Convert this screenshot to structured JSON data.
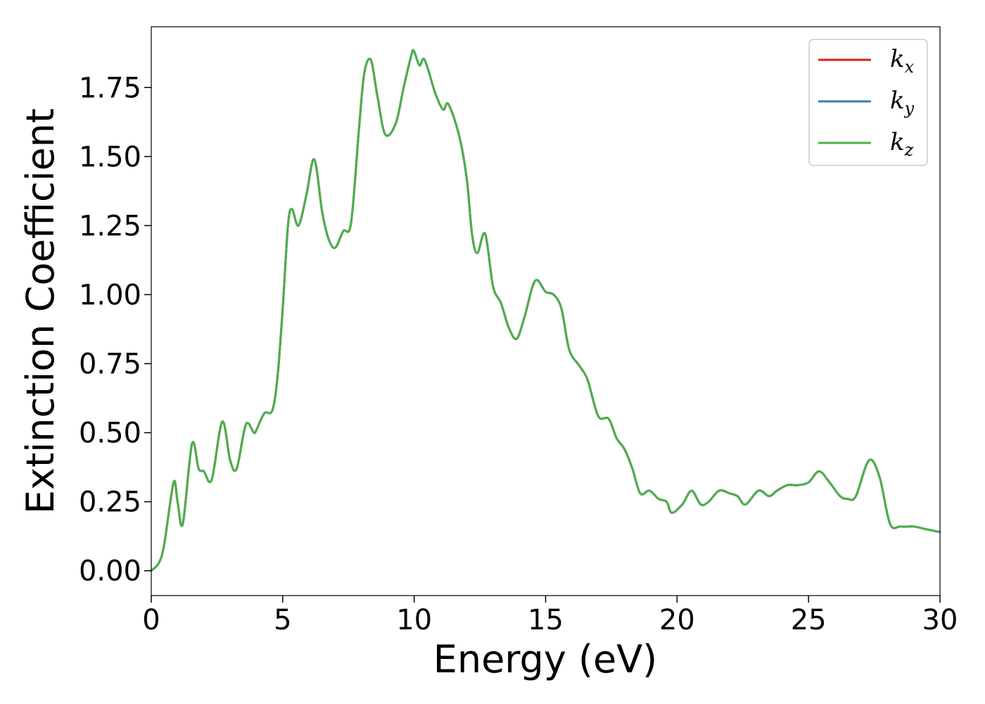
{
  "chart_data": {
    "type": "line",
    "title": "",
    "xlabel": "Energy (eV)",
    "ylabel": "Extinction Coefficient",
    "xlim": [
      0,
      30
    ],
    "ylim": [
      -0.09,
      1.97
    ],
    "xticks": [
      0,
      5,
      10,
      15,
      20,
      25,
      30
    ],
    "xtick_labels": [
      "0",
      "5",
      "10",
      "15",
      "20",
      "25",
      "30"
    ],
    "yticks": [
      0.0,
      0.25,
      0.5,
      0.75,
      1.0,
      1.25,
      1.5,
      1.75
    ],
    "ytick_labels": [
      "0.00",
      "0.25",
      "0.50",
      "0.75",
      "1.00",
      "1.25",
      "1.50",
      "1.75"
    ],
    "grid": false,
    "legend_position": "top-right",
    "x": [
      0.0,
      0.3,
      0.5,
      0.85,
      1.0,
      1.2,
      1.55,
      1.8,
      2.0,
      2.3,
      2.7,
      3.0,
      3.25,
      3.6,
      3.9,
      4.0,
      4.3,
      4.6,
      4.8,
      5.0,
      5.2,
      5.35,
      5.6,
      5.9,
      6.2,
      6.5,
      6.75,
      7.0,
      7.3,
      7.6,
      7.9,
      8.1,
      8.35,
      8.6,
      8.9,
      9.3,
      9.6,
      9.9,
      10.0,
      10.2,
      10.4,
      10.8,
      11.1,
      11.3,
      11.7,
      12.0,
      12.2,
      12.4,
      12.7,
      13.0,
      13.3,
      13.6,
      13.9,
      14.2,
      14.6,
      15.0,
      15.3,
      15.6,
      15.9,
      16.3,
      16.6,
      17.0,
      17.4,
      17.7,
      18.0,
      18.3,
      18.6,
      18.95,
      19.3,
      19.6,
      19.8,
      20.2,
      20.55,
      20.9,
      21.2,
      21.6,
      22.0,
      22.3,
      22.6,
      23.1,
      23.5,
      23.8,
      24.2,
      24.6,
      25.0,
      25.4,
      25.8,
      26.2,
      26.5,
      26.8,
      27.3,
      27.7,
      28.1,
      28.5,
      29.0,
      29.5,
      30.0
    ],
    "series": [
      {
        "name": "k_x",
        "color": "#e41a1c",
        "values": [
          0.0,
          0.03,
          0.1,
          0.32,
          0.25,
          0.17,
          0.46,
          0.37,
          0.36,
          0.33,
          0.54,
          0.4,
          0.37,
          0.53,
          0.5,
          0.51,
          0.57,
          0.58,
          0.7,
          0.95,
          1.25,
          1.31,
          1.25,
          1.36,
          1.49,
          1.3,
          1.2,
          1.17,
          1.23,
          1.26,
          1.6,
          1.8,
          1.85,
          1.72,
          1.58,
          1.62,
          1.75,
          1.87,
          1.88,
          1.83,
          1.85,
          1.73,
          1.67,
          1.69,
          1.58,
          1.42,
          1.22,
          1.15,
          1.22,
          1.03,
          0.97,
          0.88,
          0.84,
          0.92,
          1.05,
          1.01,
          1.0,
          0.95,
          0.8,
          0.74,
          0.69,
          0.56,
          0.55,
          0.48,
          0.44,
          0.37,
          0.28,
          0.29,
          0.26,
          0.25,
          0.21,
          0.24,
          0.29,
          0.24,
          0.25,
          0.29,
          0.28,
          0.27,
          0.24,
          0.29,
          0.27,
          0.29,
          0.31,
          0.31,
          0.32,
          0.36,
          0.32,
          0.27,
          0.26,
          0.27,
          0.4,
          0.34,
          0.17,
          0.16,
          0.16,
          0.15,
          0.14
        ]
      },
      {
        "name": "k_y",
        "color": "#377eb8",
        "values": [
          0.0,
          0.03,
          0.1,
          0.32,
          0.25,
          0.17,
          0.46,
          0.37,
          0.36,
          0.33,
          0.54,
          0.4,
          0.37,
          0.53,
          0.5,
          0.51,
          0.57,
          0.58,
          0.7,
          0.95,
          1.25,
          1.31,
          1.25,
          1.36,
          1.49,
          1.3,
          1.2,
          1.17,
          1.23,
          1.26,
          1.6,
          1.8,
          1.85,
          1.72,
          1.58,
          1.62,
          1.75,
          1.87,
          1.88,
          1.83,
          1.85,
          1.73,
          1.67,
          1.69,
          1.58,
          1.42,
          1.22,
          1.15,
          1.22,
          1.03,
          0.97,
          0.88,
          0.84,
          0.92,
          1.05,
          1.01,
          1.0,
          0.95,
          0.8,
          0.74,
          0.69,
          0.56,
          0.55,
          0.48,
          0.44,
          0.37,
          0.28,
          0.29,
          0.26,
          0.25,
          0.21,
          0.24,
          0.29,
          0.24,
          0.25,
          0.29,
          0.28,
          0.27,
          0.24,
          0.29,
          0.27,
          0.29,
          0.31,
          0.31,
          0.32,
          0.36,
          0.32,
          0.27,
          0.26,
          0.27,
          0.4,
          0.34,
          0.17,
          0.16,
          0.16,
          0.15,
          0.14
        ]
      },
      {
        "name": "k_z",
        "color": "#4daf4a",
        "values": [
          0.0,
          0.03,
          0.1,
          0.32,
          0.25,
          0.17,
          0.46,
          0.37,
          0.36,
          0.33,
          0.54,
          0.4,
          0.37,
          0.53,
          0.5,
          0.51,
          0.57,
          0.58,
          0.7,
          0.95,
          1.25,
          1.31,
          1.25,
          1.36,
          1.49,
          1.3,
          1.2,
          1.17,
          1.23,
          1.26,
          1.6,
          1.8,
          1.85,
          1.72,
          1.58,
          1.62,
          1.75,
          1.87,
          1.88,
          1.83,
          1.85,
          1.73,
          1.67,
          1.69,
          1.58,
          1.42,
          1.22,
          1.15,
          1.22,
          1.03,
          0.97,
          0.88,
          0.84,
          0.92,
          1.05,
          1.01,
          1.0,
          0.95,
          0.8,
          0.74,
          0.69,
          0.56,
          0.55,
          0.48,
          0.44,
          0.37,
          0.28,
          0.29,
          0.26,
          0.25,
          0.21,
          0.24,
          0.29,
          0.24,
          0.25,
          0.29,
          0.28,
          0.27,
          0.24,
          0.29,
          0.27,
          0.29,
          0.31,
          0.31,
          0.32,
          0.36,
          0.32,
          0.27,
          0.26,
          0.27,
          0.4,
          0.34,
          0.17,
          0.16,
          0.16,
          0.15,
          0.14
        ]
      }
    ],
    "legend": [
      {
        "base": "k",
        "sub": "x",
        "color": "#e41a1c"
      },
      {
        "base": "k",
        "sub": "y",
        "color": "#377eb8"
      },
      {
        "base": "k",
        "sub": "z",
        "color": "#4daf4a"
      }
    ]
  }
}
